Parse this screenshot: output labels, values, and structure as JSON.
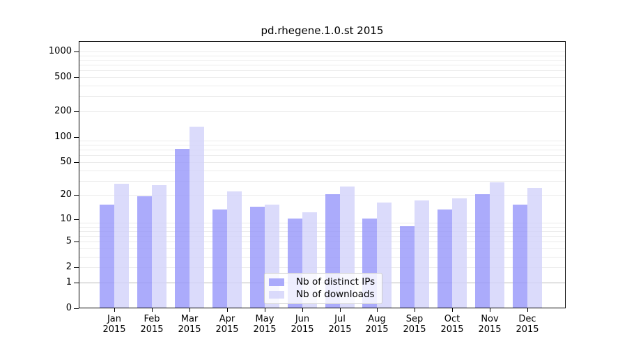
{
  "title": "pd.rhegene.1.0.st 2015",
  "legend": {
    "items": [
      {
        "label": "Nb of distinct IPs",
        "color": "#9696fa"
      },
      {
        "label": "Nb of downloads",
        "color": "#d2d2fa"
      }
    ]
  },
  "chart_data": {
    "type": "bar",
    "title": "pd.rhegene.1.0.st 2015",
    "categories": [
      "Jan",
      "Feb",
      "Mar",
      "Apr",
      "May",
      "Jun",
      "Jul",
      "Aug",
      "Sep",
      "Oct",
      "Nov",
      "Dec"
    ],
    "x_sublabel": "2015",
    "series": [
      {
        "name": "Nb of distinct IPs",
        "color": "#9696fa",
        "values": [
          15,
          19,
          70,
          13,
          14,
          10,
          20,
          10,
          8,
          13,
          20,
          15
        ]
      },
      {
        "name": "Nb of downloads",
        "color": "#d2d2fa",
        "values": [
          27,
          26,
          128,
          22,
          15,
          12,
          25,
          16,
          17,
          18,
          28,
          24
        ]
      }
    ],
    "y_ticks": [
      0,
      1,
      2,
      5,
      10,
      20,
      50,
      100,
      200,
      500,
      1000
    ],
    "y_tick_labels": [
      "0",
      "1",
      "2",
      "5",
      "10",
      "20",
      "50",
      "100",
      "200",
      "500",
      "1000"
    ],
    "yscale": "log1p",
    "ylim": [
      0,
      1000
    ],
    "xlabel": "",
    "ylabel": "",
    "grid": true,
    "grid_minor_values_note": "minor gridlines at 2-9, 20-90, 200-900, 1000; major darker lines at 1, 10, 100",
    "legend_position": "lower center inside",
    "colors": {
      "bar_distinct_ips": "#9696fa",
      "bar_downloads": "#d2d2fa",
      "grid_major": "#b8b8b8",
      "grid_minor": "#ebebeb",
      "axis": "#000000",
      "text": "#000000",
      "background": "#ffffff"
    }
  }
}
